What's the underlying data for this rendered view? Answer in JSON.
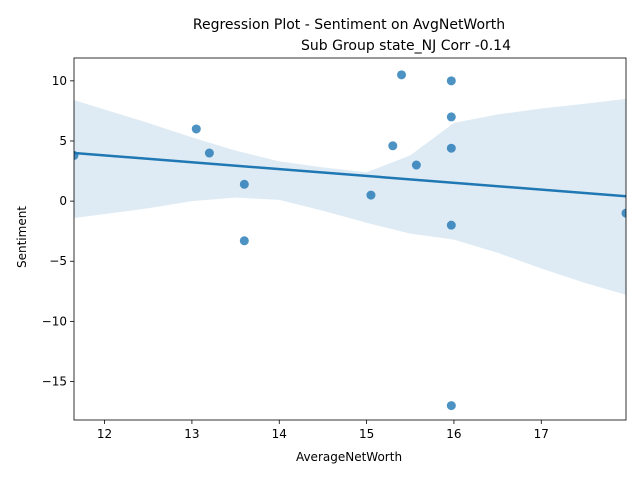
{
  "chart_data": {
    "type": "scatter",
    "title_line1": "Regression Plot - Sentiment on AvgNetWorth",
    "title_line2": "Sub Group state_NJ Corr -0.14",
    "xlabel": "AverageNetWorth",
    "ylabel": "Sentiment",
    "xlim": [
      11.65,
      17.97
    ],
    "ylim": [
      -18.2,
      11.9
    ],
    "xticks": [
      12,
      13,
      14,
      15,
      16,
      17
    ],
    "yticks": [
      10,
      5,
      0,
      -5,
      -10,
      -15
    ],
    "ytick_labels": [
      "10",
      "5",
      "0",
      "−5",
      "−10",
      "−15"
    ],
    "points": [
      {
        "x": 11.65,
        "y": 3.8
      },
      {
        "x": 13.05,
        "y": 6.0
      },
      {
        "x": 13.2,
        "y": 4.0
      },
      {
        "x": 13.6,
        "y": 1.4
      },
      {
        "x": 13.6,
        "y": -3.3
      },
      {
        "x": 15.05,
        "y": 0.5
      },
      {
        "x": 15.3,
        "y": 4.6
      },
      {
        "x": 15.4,
        "y": 10.5
      },
      {
        "x": 15.57,
        "y": 3.0
      },
      {
        "x": 15.97,
        "y": 10.0
      },
      {
        "x": 15.97,
        "y": 7.0
      },
      {
        "x": 15.97,
        "y": 4.4
      },
      {
        "x": 15.97,
        "y": -2.0
      },
      {
        "x": 15.97,
        "y": -17.0
      },
      {
        "x": 17.97,
        "y": -1.0
      }
    ],
    "regression_line": {
      "x": [
        11.65,
        17.97
      ],
      "y": [
        4.0,
        0.4
      ]
    },
    "confidence_band": {
      "x": [
        11.65,
        12.5,
        13.0,
        13.5,
        14.0,
        14.5,
        15.0,
        15.5,
        16.0,
        16.5,
        17.0,
        17.5,
        17.97
      ],
      "upper": [
        8.4,
        6.5,
        5.3,
        4.2,
        3.3,
        2.8,
        2.4,
        3.8,
        6.5,
        7.2,
        7.7,
        8.1,
        8.5
      ],
      "lower": [
        -1.4,
        -0.6,
        0.0,
        0.3,
        0.1,
        -0.8,
        -1.8,
        -2.7,
        -3.2,
        -4.3,
        -5.6,
        -6.8,
        -7.8
      ]
    },
    "grid": false,
    "colors": {
      "points": "#1f77b4",
      "line": "#1f77b4",
      "band": "#1f77b4"
    }
  }
}
